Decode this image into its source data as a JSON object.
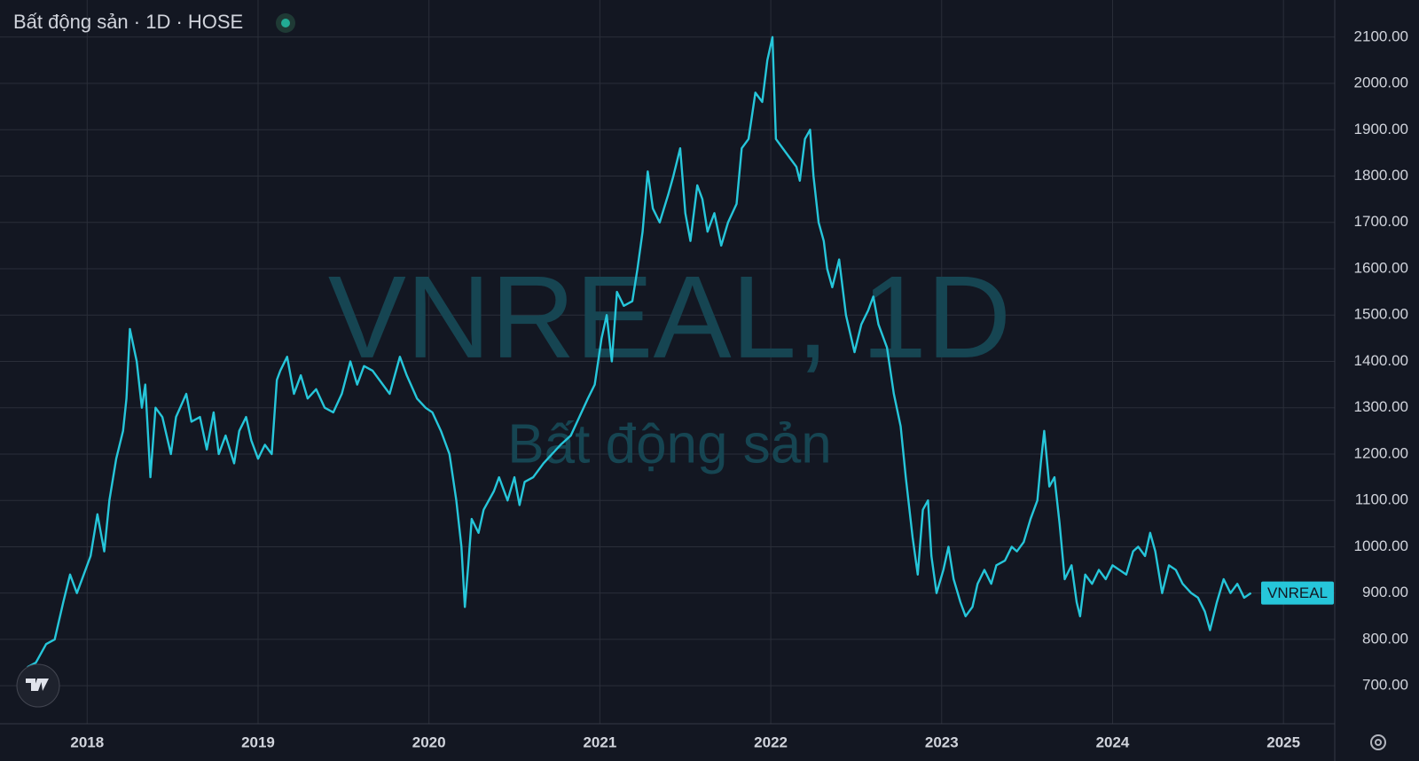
{
  "chart_data": {
    "type": "line",
    "title": "Bất động sản · 1D · HOSE",
    "watermark": "VNREAL, 1D",
    "watermark_subtitle": "Bất động sản",
    "x": [
      2017.65,
      2017.7,
      2017.76,
      2017.81,
      2017.86,
      2017.9,
      2017.94,
      2017.98,
      2018.02,
      2018.06,
      2018.1,
      2018.13,
      2018.17,
      2018.21,
      2018.23,
      2018.25,
      2018.29,
      2018.32,
      2018.34,
      2018.37,
      2018.4,
      2018.44,
      2018.49,
      2018.52,
      2018.58,
      2018.61,
      2018.66,
      2018.7,
      2018.74,
      2018.77,
      2018.81,
      2018.86,
      2018.89,
      2018.93,
      2018.96,
      2019.0,
      2019.04,
      2019.08,
      2019.11,
      2019.13,
      2019.17,
      2019.21,
      2019.25,
      2019.29,
      2019.34,
      2019.39,
      2019.44,
      2019.49,
      2019.54,
      2019.58,
      2019.62,
      2019.67,
      2019.71,
      2019.77,
      2019.83,
      2019.87,
      2019.93,
      2019.98,
      2020.02,
      2020.07,
      2020.12,
      2020.16,
      2020.19,
      2020.21,
      2020.23,
      2020.25,
      2020.29,
      2020.32,
      2020.38,
      2020.41,
      2020.46,
      2020.5,
      2020.53,
      2020.56,
      2020.61,
      2020.67,
      2020.72,
      2020.77,
      2020.83,
      2020.88,
      2020.93,
      2020.97,
      2021.01,
      2021.04,
      2021.07,
      2021.1,
      2021.14,
      2021.19,
      2021.22,
      2021.25,
      2021.28,
      2021.31,
      2021.35,
      2021.4,
      2021.43,
      2021.47,
      2021.5,
      2021.53,
      2021.57,
      2021.6,
      2021.63,
      2021.67,
      2021.71,
      2021.75,
      2021.8,
      2021.83,
      2021.87,
      2021.91,
      2021.95,
      2021.98,
      2022.01,
      2022.03,
      2022.07,
      2022.11,
      2022.15,
      2022.17,
      2022.2,
      2022.23,
      2022.25,
      2022.28,
      2022.31,
      2022.33,
      2022.36,
      2022.4,
      2022.44,
      2022.49,
      2022.53,
      2022.57,
      2022.6,
      2022.63,
      2022.68,
      2022.72,
      2022.76,
      2022.79,
      2022.83,
      2022.86,
      2022.89,
      2022.92,
      2022.94,
      2022.97,
      2023.01,
      2023.04,
      2023.07,
      2023.11,
      2023.14,
      2023.18,
      2023.21,
      2023.25,
      2023.29,
      2023.32,
      2023.37,
      2023.41,
      2023.44,
      2023.48,
      2023.52,
      2023.56,
      2023.58,
      2023.6,
      2023.63,
      2023.66,
      2023.69,
      2023.72,
      2023.76,
      2023.79,
      2023.81,
      2023.84,
      2023.88,
      2023.92,
      2023.96,
      2024.0,
      2024.04,
      2024.08,
      2024.12,
      2024.15,
      2024.19,
      2024.22,
      2024.25,
      2024.29,
      2024.33,
      2024.37,
      2024.41,
      2024.46,
      2024.5,
      2024.54,
      2024.57,
      2024.61,
      2024.65,
      2024.69,
      2024.73,
      2024.77,
      2024.81
    ],
    "series": [
      {
        "name": "VNREAL",
        "color": "#26c6da",
        "values": [
          740,
          750,
          790,
          800,
          880,
          940,
          900,
          940,
          980,
          1070,
          990,
          1100,
          1190,
          1250,
          1320,
          1470,
          1400,
          1300,
          1350,
          1150,
          1300,
          1280,
          1200,
          1280,
          1330,
          1270,
          1280,
          1210,
          1290,
          1200,
          1240,
          1180,
          1250,
          1280,
          1230,
          1190,
          1220,
          1200,
          1360,
          1380,
          1410,
          1330,
          1370,
          1320,
          1340,
          1300,
          1290,
          1330,
          1400,
          1350,
          1390,
          1380,
          1360,
          1330,
          1410,
          1370,
          1320,
          1300,
          1290,
          1250,
          1200,
          1100,
          1000,
          870,
          960,
          1060,
          1030,
          1080,
          1120,
          1150,
          1100,
          1150,
          1090,
          1140,
          1150,
          1180,
          1200,
          1220,
          1240,
          1280,
          1320,
          1350,
          1450,
          1500,
          1400,
          1550,
          1520,
          1530,
          1600,
          1680,
          1810,
          1730,
          1700,
          1760,
          1800,
          1860,
          1720,
          1660,
          1780,
          1750,
          1680,
          1720,
          1650,
          1700,
          1740,
          1860,
          1880,
          1980,
          1960,
          2050,
          2100,
          1880,
          1860,
          1840,
          1820,
          1790,
          1880,
          1900,
          1800,
          1700,
          1660,
          1600,
          1560,
          1620,
          1500,
          1420,
          1480,
          1510,
          1540,
          1480,
          1430,
          1330,
          1260,
          1150,
          1020,
          940,
          1080,
          1100,
          980,
          900,
          950,
          1000,
          930,
          880,
          850,
          870,
          920,
          950,
          920,
          960,
          970,
          1000,
          990,
          1010,
          1060,
          1100,
          1180,
          1250,
          1130,
          1150,
          1050,
          930,
          960,
          880,
          850,
          940,
          920,
          950,
          930,
          960,
          950,
          940,
          990,
          1000,
          980,
          1030,
          990,
          900,
          960,
          950,
          920,
          900,
          890,
          860,
          820,
          880,
          930,
          900,
          920,
          890,
          900
        ]
      }
    ],
    "xlim": [
      2017.49,
      2025.3
    ],
    "ylim": [
      618,
      2180
    ],
    "xticks": [
      2018,
      2019,
      2020,
      2021,
      2022,
      2023,
      2024,
      2025
    ],
    "yticks": [
      {
        "value": 700,
        "label": "700.00"
      },
      {
        "value": 800,
        "label": "800.00"
      },
      {
        "value": 900,
        "label": "900.00"
      },
      {
        "value": 1000,
        "label": "1000.00"
      },
      {
        "value": 1100,
        "label": "1100.00"
      },
      {
        "value": 1200,
        "label": "1200.00"
      },
      {
        "value": 1300,
        "label": "1300.00"
      },
      {
        "value": 1400,
        "label": "1400.00"
      },
      {
        "value": 1500,
        "label": "1500.00"
      },
      {
        "value": 1600,
        "label": "1600.00"
      },
      {
        "value": 1700,
        "label": "1700.00"
      },
      {
        "value": 1800,
        "label": "1800.00"
      },
      {
        "value": 1900,
        "label": "1900.00"
      },
      {
        "value": 2000,
        "label": "2000.00"
      },
      {
        "value": 2100,
        "label": "2100.00"
      }
    ],
    "grid": true
  }
}
